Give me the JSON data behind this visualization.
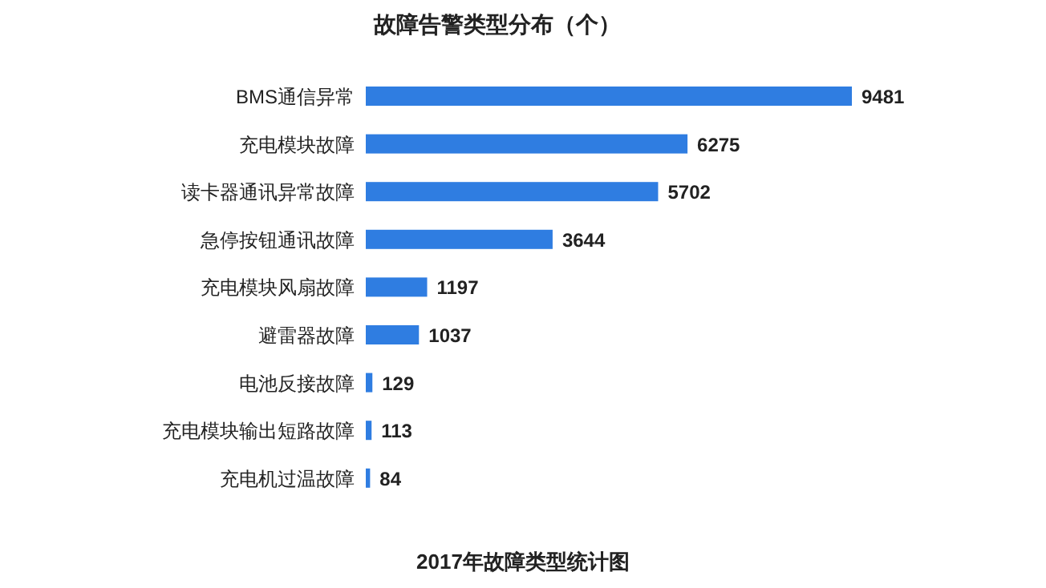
{
  "chart_data": {
    "type": "bar",
    "orientation": "horizontal",
    "title": "故障告警类型分布（个）",
    "categories": [
      "BMS通信异常",
      "充电模块故障",
      "读卡器通讯异常故障",
      "急停按钮通讯故障",
      "充电模块风扇故障",
      "避雷器故障",
      "电池反接故障",
      "充电模块输出短路故障",
      "充电机过温故障"
    ],
    "values": [
      9481,
      6275,
      5702,
      3644,
      1197,
      1037,
      129,
      113,
      84
    ],
    "color": "#2f7de1",
    "data_labels": true,
    "annotations": [
      "2017年故障类型统计图"
    ]
  }
}
